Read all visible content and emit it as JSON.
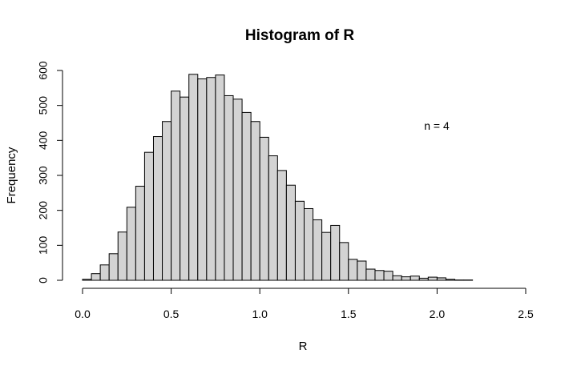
{
  "chart_data": {
    "type": "bar",
    "title": "Histogram of R",
    "xlabel": "R",
    "ylabel": "Frequency",
    "annotation": "n = 4",
    "xlim": [
      0,
      2.5
    ],
    "ylim": [
      0,
      600
    ],
    "x_ticks": [
      "0.0",
      "0.5",
      "1.0",
      "1.5",
      "2.0",
      "2.5"
    ],
    "y_ticks": [
      "0",
      "100",
      "200",
      "300",
      "400",
      "500",
      "600"
    ],
    "bin_width": 0.05,
    "bin_start": 0.0,
    "values": [
      3,
      19,
      44,
      76,
      138,
      209,
      269,
      366,
      411,
      454,
      541,
      524,
      589,
      576,
      580,
      587,
      528,
      518,
      480,
      454,
      409,
      356,
      314,
      272,
      226,
      205,
      173,
      137,
      157,
      108,
      60,
      55,
      32,
      28,
      26,
      13,
      10,
      12,
      6,
      9,
      7,
      3,
      1,
      1
    ],
    "bar_color": "#d3d3d3",
    "bar_edge_color": "#000000",
    "grid": false
  }
}
